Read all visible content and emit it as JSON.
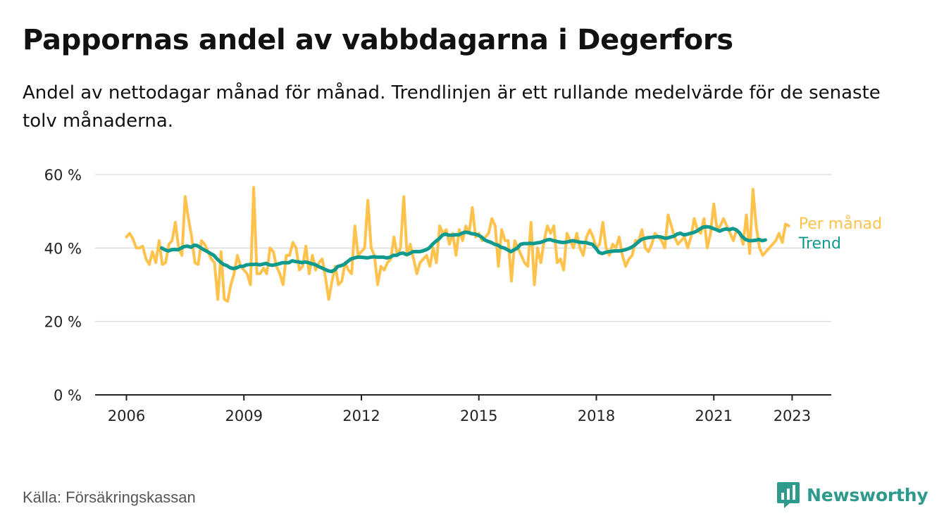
{
  "header": {
    "title": "Pappornas andel av vabbdagarna i Degerfors",
    "subtitle": "Andel av nettodagar månad för månad. Trendlinjen är ett rullande medelvärde för de senaste tolv månaderna."
  },
  "footer": {
    "source": "Källa: Försäkringskassan",
    "brand": "Newsworthy"
  },
  "colors": {
    "monthly": "#FFC24D",
    "trend": "#0F9A8D",
    "grid": "#DDDDDD",
    "axis": "#222222",
    "brand": "#2E9A8C"
  },
  "chart_data": {
    "type": "line",
    "x_unit": "decimal year",
    "xlim": [
      2005.2,
      2024.0
    ],
    "ylim": [
      0,
      60
    ],
    "grid": true,
    "y_ticks": [
      {
        "value": 0,
        "label": "0 %"
      },
      {
        "value": 20,
        "label": "20 %"
      },
      {
        "value": 40,
        "label": "40 %"
      },
      {
        "value": 60,
        "label": "60 %"
      }
    ],
    "x_ticks": [
      {
        "value": 2006,
        "label": "2006"
      },
      {
        "value": 2009,
        "label": "2009"
      },
      {
        "value": 2012,
        "label": "2012"
      },
      {
        "value": 2015,
        "label": "2015"
      },
      {
        "value": 2018,
        "label": "2018"
      },
      {
        "value": 2021,
        "label": "2021"
      },
      {
        "value": 2023,
        "label": "2023"
      }
    ],
    "series": [
      {
        "name": "Per månad",
        "color": "#FFC24D",
        "x_start": 2006.0,
        "x_step": 0.08333,
        "values": [
          43,
          44,
          42.5,
          40,
          40,
          40.5,
          37,
          35.5,
          39,
          36,
          42,
          35.5,
          36,
          41,
          42,
          47,
          40,
          38,
          54,
          48,
          43,
          36,
          35.5,
          42,
          41,
          39,
          37,
          36,
          26,
          39,
          26,
          25.5,
          30,
          33,
          38,
          35,
          34,
          33,
          30,
          56.5,
          33,
          33,
          34.5,
          33,
          40,
          39,
          35,
          33,
          30,
          38,
          38,
          41.5,
          40,
          34,
          35,
          40.5,
          33,
          38,
          34,
          36,
          37,
          32,
          26,
          31,
          35,
          30,
          31,
          36,
          34,
          33,
          46,
          38,
          39,
          40,
          53,
          40,
          38,
          30,
          35,
          34,
          36,
          37,
          43,
          38,
          40,
          54,
          38,
          41,
          37,
          33,
          36,
          37,
          38,
          35,
          40,
          36,
          46,
          44,
          45,
          41,
          44,
          38,
          45,
          42,
          46,
          44,
          51,
          43,
          44,
          42,
          43,
          44,
          48,
          46,
          35,
          45,
          42,
          42,
          31,
          42,
          40,
          38,
          36,
          35,
          47,
          30,
          40,
          36,
          42,
          46,
          44,
          46,
          36,
          37,
          34,
          44,
          42,
          40,
          44,
          40,
          38,
          43,
          45,
          43,
          40,
          41,
          47,
          40,
          38,
          41,
          40,
          43,
          38,
          35,
          37,
          38,
          42,
          42,
          45,
          40,
          39,
          41,
          44,
          43,
          42,
          40,
          49,
          46,
          43,
          41,
          42,
          43,
          40,
          43,
          48,
          45,
          44,
          48,
          40,
          44,
          52,
          45,
          46,
          48,
          46,
          44,
          42,
          45,
          44,
          41,
          49,
          38.5,
          56,
          46,
          40,
          38,
          39,
          40,
          41,
          42,
          44,
          41.5,
          46.5,
          46
        ]
      },
      {
        "name": "Trend",
        "color": "#0F9A8D",
        "x_start": 2006.9,
        "x_step": 0.08333,
        "values": [
          40,
          39.5,
          39.2,
          39.5,
          39.6,
          39.5,
          40,
          40.4,
          40.5,
          40.2,
          40.8,
          40.6,
          40,
          39.5,
          39,
          38.5,
          38,
          37,
          36.2,
          35.5,
          35.2,
          34.6,
          34.4,
          34.6,
          35,
          35,
          35.4,
          35.5,
          35.5,
          35.6,
          35.4,
          35.6,
          35.8,
          35.4,
          35.3,
          35.5,
          35.7,
          36,
          36,
          36,
          36.5,
          36.3,
          36.2,
          36,
          36.2,
          36,
          35.7,
          35.5,
          35,
          34.6,
          34.2,
          33.8,
          33.6,
          34,
          35,
          35.2,
          35.6,
          36.3,
          37,
          37.3,
          37.5,
          37.5,
          37.4,
          37.3,
          37.5,
          37.6,
          37.5,
          37.5,
          37.5,
          37.3,
          37.5,
          38,
          38,
          38.5,
          38.6,
          38.2,
          38.5,
          39,
          39,
          39,
          39.2,
          39.5,
          40,
          41,
          41.8,
          42.5,
          43.5,
          43.8,
          43.5,
          43.5,
          43.6,
          43.6,
          44,
          44.3,
          44.2,
          43.9,
          43.8,
          43.5,
          43,
          42.2,
          41.8,
          41.5,
          41,
          40.8,
          40.2,
          40,
          39.5,
          39,
          39.5,
          40,
          41,
          41.2,
          41.2,
          41.3,
          41.2,
          41.4,
          41.5,
          41.8,
          42.2,
          42.3,
          42,
          41.8,
          41.6,
          41.5,
          41.6,
          41.8,
          42,
          41.8,
          41.6,
          41.5,
          41.5,
          41.2,
          41,
          40,
          38.8,
          38.5,
          38.8,
          39,
          39.1,
          39.2,
          39.2,
          39.3,
          39.5,
          39.8,
          40.2,
          40.8,
          41.6,
          42.3,
          42.6,
          42.8,
          42.9,
          43,
          43.1,
          43,
          42.7,
          42.7,
          43,
          43.2,
          43.8,
          44,
          43.6,
          43.7,
          44,
          44.2,
          44.6,
          45.2,
          45.7,
          45.8,
          45.7,
          45.3,
          45,
          44.6,
          45,
          45.2,
          45,
          45.3,
          45,
          44.2,
          43,
          42.3,
          42,
          42,
          42.1,
          42.3,
          42,
          42.2
        ]
      }
    ]
  }
}
